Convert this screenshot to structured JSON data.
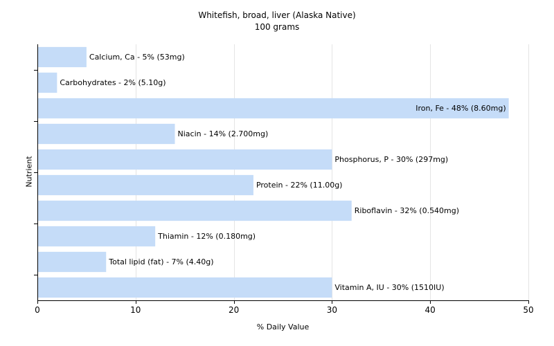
{
  "chart_data": {
    "type": "bar",
    "orientation": "horizontal",
    "title": "Whitefish, broad, liver (Alaska Native)",
    "subtitle": "100 grams",
    "xlabel": "% Daily Value",
    "ylabel": "Nutrient",
    "xlim": [
      0,
      50
    ],
    "xticks": [
      0,
      10,
      20,
      30,
      40,
      50
    ],
    "grid": true,
    "bar_color": "#c5dcf8",
    "categories": [
      "Calcium, Ca",
      "Carbohydrates",
      "Iron, Fe",
      "Niacin",
      "Phosphorus, P",
      "Protein",
      "Riboflavin",
      "Thiamin",
      "Total lipid (fat)",
      "Vitamin A, IU"
    ],
    "values": [
      5,
      2,
      48,
      14,
      30,
      22,
      32,
      12,
      7,
      30
    ],
    "labels": [
      "Calcium, Ca - 5% (53mg)",
      "Carbohydrates - 2% (5.10g)",
      "Iron, Fe - 48% (8.60mg)",
      "Niacin - 14% (2.700mg)",
      "Phosphorus, P - 30% (297mg)",
      "Protein - 22% (11.00g)",
      "Riboflavin - 32% (0.540mg)",
      "Thiamin - 12% (0.180mg)",
      "Total lipid (fat) - 7% (4.40g)",
      "Vitamin A, IU - 30% (1510IU)"
    ]
  }
}
